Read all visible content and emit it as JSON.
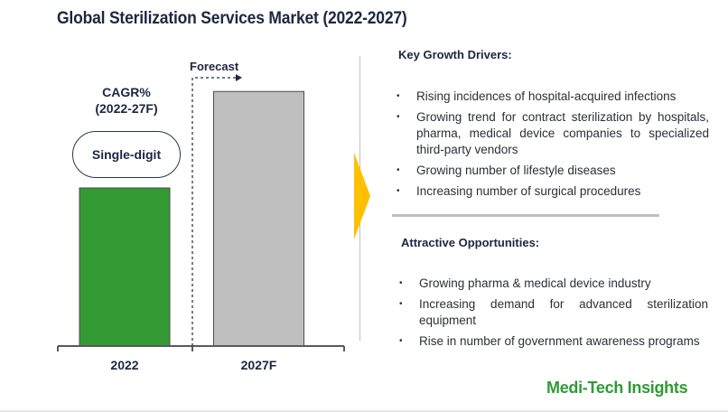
{
  "title": "Global Sterilization Services Market (2022-2027)",
  "chart_data": {
    "type": "bar",
    "title": "Global Sterilization Services Market (2022-2027)",
    "categories": [
      "2022",
      "2027F"
    ],
    "values": [
      1.0,
      1.61
    ],
    "value_note": "Relative bar heights (2022 = 1.0); no absolute values shown",
    "colors": [
      "#339933",
      "#bfbfbf"
    ],
    "forecast_label": "Forecast",
    "forecast_start_category": "2027F",
    "cagr_label": "CAGR%\n(2022-27F)",
    "cagr_label_lines": [
      "CAGR%",
      "(2022-27F)"
    ],
    "cagr_value": "Single-digit",
    "xlabel": "",
    "ylabel": "",
    "grid": false,
    "legend": "none"
  },
  "drivers": {
    "heading": "Key Growth Drivers:",
    "items": [
      "Rising incidences of hospital-acquired infections",
      "Growing trend for contract sterilization by hospitals, pharma, medical device companies to specialized third-party vendors",
      "Growing number of lifestyle diseases",
      "Increasing number of surgical procedures"
    ]
  },
  "opportunities": {
    "heading": "Attractive Opportunities:",
    "items": [
      "Growing pharma & medical device industry",
      "Increasing demand for advanced sterilization equipment",
      "Rise in number of government awareness programs"
    ]
  },
  "brand": "Medi-Tech Insights",
  "colors": {
    "accent_arrow": "#ffc000",
    "brand_green": "#2e9b35",
    "title_navy": "#1c2740"
  }
}
